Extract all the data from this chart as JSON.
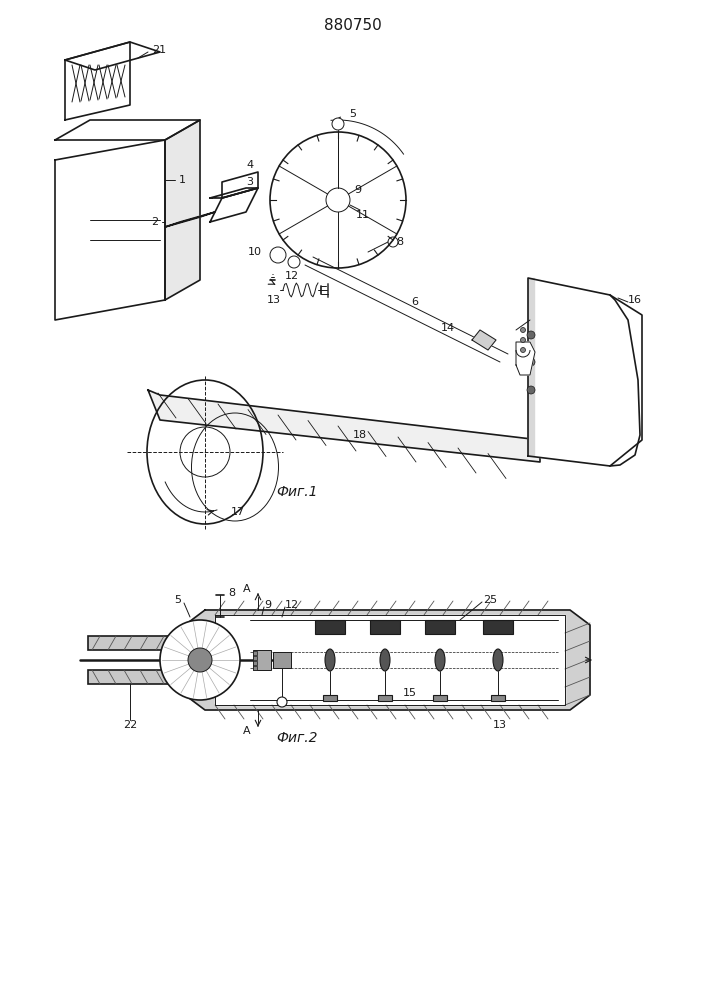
{
  "title": "880750",
  "fig1_caption": "Фиг.1",
  "fig2_caption": "Фиг.2",
  "bg_color": "#ffffff",
  "line_color": "#1a1a1a",
  "font_size_title": 11,
  "font_size_label": 8,
  "font_size_caption": 10
}
